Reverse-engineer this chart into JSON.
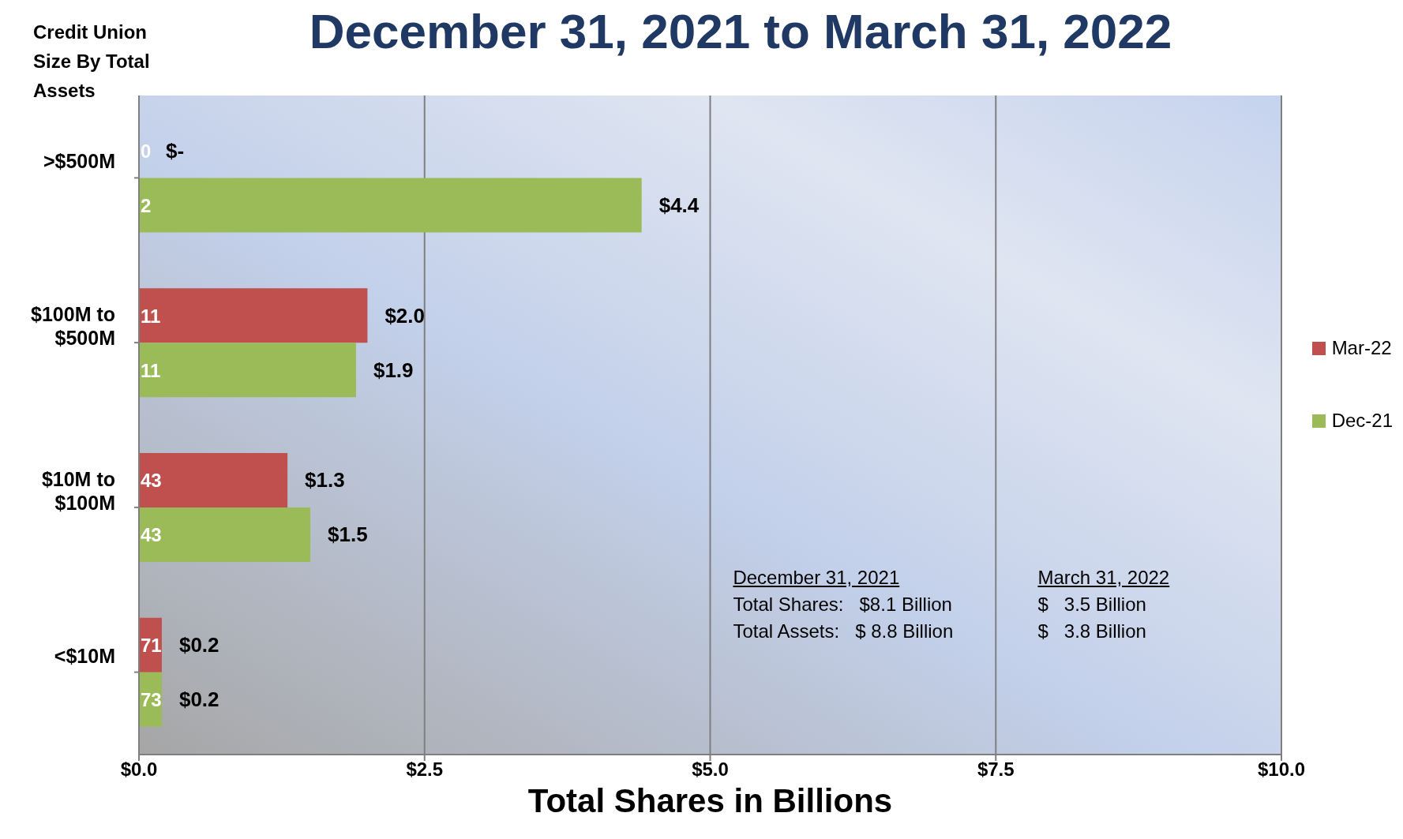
{
  "chart_data": {
    "type": "bar",
    "orientation": "horizontal",
    "title": "December 31, 2021 to March 31, 2022",
    "ylabel": "Credit Union Size By Total Assets",
    "xlabel": "Total Shares in Billions",
    "categories": [
      ">$500M",
      "$100M to $500M",
      "$10M to $100M",
      "<$10M"
    ],
    "series": [
      {
        "name": "Mar-22",
        "color": "#c0504d",
        "values": [
          0,
          2.0,
          1.3,
          0.2
        ],
        "value_labels": [
          "$-",
          "$2.0",
          "$1.3",
          "$0.2"
        ]
      },
      {
        "name": "Dec-21",
        "color": "#9bbb59",
        "values": [
          4.4,
          1.9,
          1.5,
          0.2
        ],
        "value_labels": [
          "$4.4",
          "$1.9",
          "$1.5",
          "$0.2"
        ]
      }
    ],
    "xlim": [
      0,
      10
    ],
    "xticks": [
      {
        "value": 0,
        "label": "$0.0"
      },
      {
        "value": 2.5,
        "label": "$2.5"
      },
      {
        "value": 5,
        "label": "$5.0"
      },
      {
        "value": 7.5,
        "label": "$7.5"
      },
      {
        "value": 10,
        "label": "$10.0"
      }
    ],
    "grid": "x",
    "legend": "right",
    "annotations": [
      "0",
      "2",
      "11",
      "11",
      "43",
      "43",
      "71",
      "73",
      "December 31, 2021",
      "Total Shares:   $8.1 Billion",
      "Total Assets:   $ 8.8 Billion",
      "March 31, 2022",
      "$   3.5 Billion",
      "$   3.8 Billion"
    ]
  }
}
